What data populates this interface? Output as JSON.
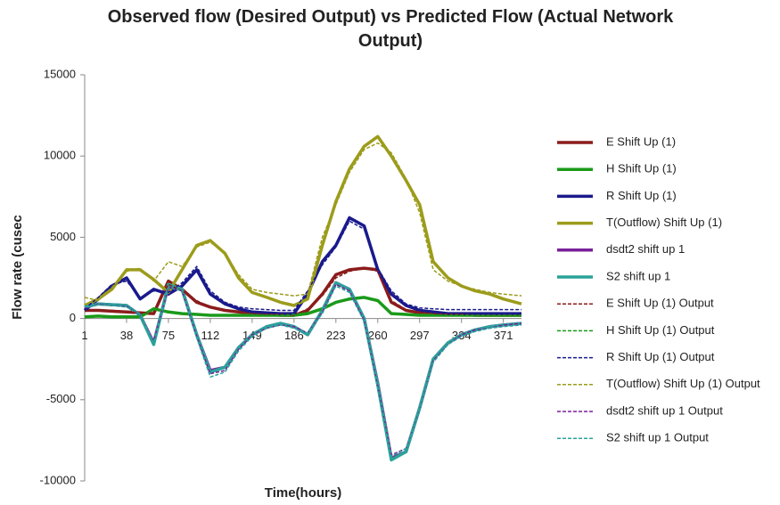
{
  "chart_data": {
    "type": "line",
    "title": "Observed flow (Desired Output) vs Predicted Flow (Actual Network Output)",
    "x_label": "Time(hours)",
    "y_label": "Flow rate (cusec",
    "x": [
      1,
      13,
      25,
      38,
      50,
      62,
      75,
      87,
      100,
      112,
      125,
      137,
      149,
      162,
      174,
      186,
      198,
      211,
      223,
      235,
      248,
      260,
      272,
      285,
      297,
      309,
      322,
      334,
      346,
      359,
      371,
      387
    ],
    "xlim": [
      1,
      387
    ],
    "xticks": [
      1,
      38,
      75,
      112,
      149,
      186,
      223,
      260,
      297,
      334,
      371
    ],
    "ylim": [
      -10000,
      15000
    ],
    "yticks": [
      15000,
      10000,
      5000,
      0,
      -5000,
      -10000
    ],
    "legend": "right",
    "series": [
      {
        "name": "E Shift Up (1)",
        "color": "#8b1c1c",
        "style": "solid",
        "values": [
          500,
          500,
          450,
          400,
          350,
          300,
          2300,
          1800,
          1000,
          700,
          500,
          400,
          300,
          250,
          200,
          200,
          500,
          1500,
          2700,
          3000,
          3100,
          3000,
          1000,
          500,
          350,
          300,
          250,
          250,
          200,
          200,
          200,
          200
        ]
      },
      {
        "name": "H Shift Up (1)",
        "color": "#1a9a1a",
        "style": "solid",
        "values": [
          100,
          150,
          100,
          100,
          100,
          600,
          400,
          300,
          250,
          200,
          200,
          200,
          200,
          200,
          200,
          200,
          300,
          600,
          1000,
          1200,
          1300,
          1100,
          300,
          250,
          200,
          200,
          200,
          200,
          200,
          200,
          200,
          200
        ]
      },
      {
        "name": "R Shift Up (1)",
        "color": "#1a1a8c",
        "style": "solid",
        "values": [
          500,
          1200,
          2000,
          2500,
          1200,
          1800,
          1500,
          2000,
          3000,
          1500,
          900,
          600,
          400,
          350,
          300,
          300,
          1500,
          3500,
          4500,
          6200,
          5700,
          3000,
          1500,
          800,
          500,
          400,
          300,
          300,
          300,
          300,
          300,
          300
        ]
      },
      {
        "name": "T(Outflow) Shift Up (1)",
        "color": "#9c9c1c",
        "style": "solid",
        "values": [
          800,
          1200,
          1800,
          3000,
          3000,
          2400,
          1600,
          3000,
          4500,
          4800,
          4000,
          2500,
          1600,
          1300,
          1000,
          800,
          1200,
          4500,
          7200,
          9200,
          10600,
          11200,
          10000,
          8500,
          7000,
          3500,
          2500,
          2000,
          1700,
          1500,
          1200,
          900
        ]
      },
      {
        "name": "dsdt2 shift up 1",
        "color": "#7a1f9a",
        "style": "solid",
        "values": [
          700,
          900,
          850,
          800,
          200,
          -1500,
          2000,
          1800,
          -1000,
          -3200,
          -3000,
          -1800,
          -1000,
          -500,
          -300,
          -500,
          -1000,
          500,
          2200,
          1800,
          0,
          -4000,
          -8600,
          -8200,
          -5500,
          -2500,
          -1500,
          -1000,
          -700,
          -500,
          -400,
          -300
        ]
      },
      {
        "name": "S2 shift up 1",
        "color": "#2aa39a",
        "style": "solid",
        "values": [
          700,
          900,
          850,
          800,
          200,
          -1600,
          2100,
          1800,
          -1000,
          -3300,
          -3000,
          -1800,
          -1000,
          -500,
          -300,
          -500,
          -1000,
          500,
          2200,
          1800,
          0,
          -4100,
          -8700,
          -8200,
          -5500,
          -2500,
          -1500,
          -1000,
          -700,
          -500,
          -400,
          -300
        ]
      },
      {
        "name": "E Shift Up (1) Output",
        "color": "#8b1c1c",
        "style": "dashed",
        "values": [
          450,
          500,
          500,
          450,
          350,
          350,
          2100,
          1700,
          1100,
          700,
          550,
          400,
          300,
          250,
          250,
          200,
          600,
          1400,
          2500,
          2900,
          3100,
          2900,
          1100,
          550,
          400,
          300,
          250,
          250,
          200,
          200,
          200,
          200
        ]
      },
      {
        "name": "H Shift Up (1) Output",
        "color": "#1a9a1a",
        "style": "dashed",
        "values": [
          150,
          100,
          150,
          100,
          150,
          550,
          450,
          300,
          250,
          200,
          200,
          200,
          200,
          200,
          200,
          250,
          350,
          550,
          950,
          1200,
          1300,
          1100,
          350,
          250,
          200,
          200,
          200,
          200,
          200,
          200,
          200,
          200
        ]
      },
      {
        "name": "R Shift Up (1) Output",
        "color": "#1a1a8c",
        "style": "dashed",
        "values": [
          600,
          1300,
          2100,
          2300,
          1300,
          1700,
          1600,
          2200,
          3200,
          1700,
          1000,
          700,
          600,
          550,
          500,
          500,
          1700,
          3300,
          4400,
          6000,
          5500,
          3100,
          1700,
          900,
          650,
          600,
          550,
          550,
          550,
          550,
          550,
          550
        ]
      },
      {
        "name": "T(Outflow) Shift Up (1) Output",
        "color": "#9c9c1c",
        "style": "dashed",
        "values": [
          1300,
          1100,
          1900,
          2900,
          3100,
          2300,
          3500,
          3200,
          4400,
          4700,
          4000,
          2700,
          1800,
          1600,
          1500,
          1400,
          1500,
          5000,
          7000,
          9000,
          10400,
          10800,
          10200,
          8600,
          6500,
          3000,
          2300,
          2000,
          1800,
          1600,
          1500,
          1400
        ]
      },
      {
        "name": "dsdt2 shift up 1 Output",
        "color": "#7a1f9a",
        "style": "dashed",
        "values": [
          650,
          900,
          800,
          750,
          250,
          -1400,
          1900,
          1700,
          -1100,
          -3400,
          -3200,
          -1900,
          -1000,
          -600,
          -400,
          -500,
          -900,
          400,
          2100,
          1700,
          -100,
          -4200,
          -8400,
          -8000,
          -5600,
          -2600,
          -1600,
          -1000,
          -700,
          -600,
          -400,
          -300
        ]
      },
      {
        "name": "S2 shift up 1 Output",
        "color": "#2aa39a",
        "style": "dashed",
        "values": [
          700,
          850,
          800,
          700,
          300,
          -1500,
          1900,
          1700,
          -1200,
          -3600,
          -3300,
          -2000,
          -1100,
          -600,
          -400,
          -600,
          -900,
          300,
          2000,
          1600,
          -200,
          -4300,
          -8500,
          -8000,
          -5600,
          -2700,
          -1600,
          -1100,
          -800,
          -600,
          -500,
          -400
        ]
      }
    ]
  }
}
